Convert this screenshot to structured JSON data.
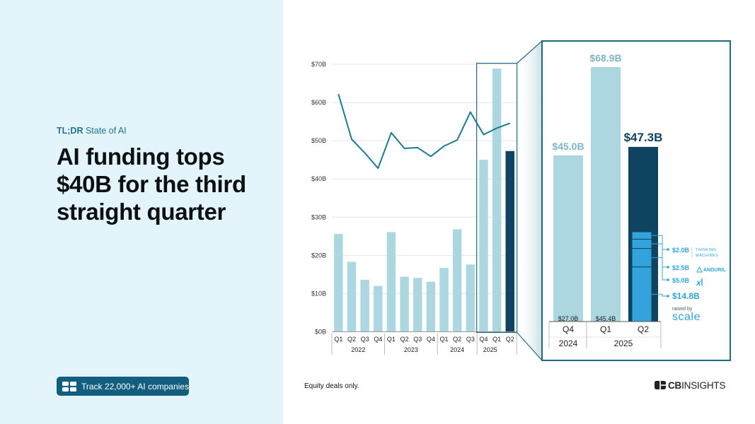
{
  "eyebrow": {
    "strong": "TL;DR",
    "rest": " State of AI"
  },
  "headline": "AI funding tops $40B for the third straight quarter",
  "cta": {
    "label": "Track 22,000+ AI companies"
  },
  "footnote": "Equity deals only.",
  "logo": {
    "text_bold": "CB",
    "text_light": "INSIGHTS"
  },
  "colors": {
    "bar_light": "#acd7e0",
    "bar_dark": "#0f4461",
    "line": "#197c92",
    "accent": "#33a3dc",
    "frame": "#1c6b83"
  },
  "chart_data": [
    {
      "type": "bar",
      "quarters": [
        "Q1",
        "Q2",
        "Q3",
        "Q4",
        "Q1",
        "Q2",
        "Q3",
        "Q4",
        "Q1",
        "Q2",
        "Q3",
        "Q4",
        "Q1",
        "Q2"
      ],
      "years": [
        {
          "label": "2022",
          "count": 4
        },
        {
          "label": "2023",
          "count": 4
        },
        {
          "label": "2024",
          "count": 3
        },
        {
          "label": "2025",
          "count": 2
        }
      ],
      "bar_values": [
        25.6,
        18.3,
        13.6,
        12.0,
        26.1,
        14.4,
        14.1,
        13.1,
        16.7,
        26.8,
        17.6,
        45.0,
        68.9,
        47.3
      ],
      "line_values": [
        62.2,
        50.4,
        46.8,
        42.8,
        52.1,
        48.0,
        48.2,
        45.9,
        48.6,
        50.2,
        57.5,
        51.6,
        53.3,
        54.6
      ],
      "highlight": {
        "from_index": 11,
        "to_index": 13
      },
      "ylim": [
        0,
        70
      ],
      "y_ticks": [
        {
          "value": 0,
          "label": "$0B"
        },
        {
          "value": 10,
          "label": "$10B"
        },
        {
          "value": 20,
          "label": "$20B"
        },
        {
          "value": 30,
          "label": "$30B"
        },
        {
          "value": 40,
          "label": "$40B"
        },
        {
          "value": 50,
          "label": "$50B"
        },
        {
          "value": 60,
          "label": "$60B"
        },
        {
          "value": 70,
          "label": "$70B"
        }
      ],
      "grid": true
    },
    {
      "type": "bar",
      "categories": [
        "Q4",
        "Q1",
        "Q2"
      ],
      "years": [
        {
          "label": "2024",
          "count": 1
        },
        {
          "label": "2025",
          "count": 2
        }
      ],
      "values": [
        45.0,
        68.9,
        47.3
      ],
      "value_labels": [
        "$45.0B",
        "$68.9B",
        "$47.3B"
      ],
      "base_labels": [
        "$27.0B",
        "$45.4B",
        ""
      ],
      "ylim": [
        0,
        70
      ],
      "breakdown": [
        {
          "label": "$14.8B",
          "value": 14.8,
          "company": "scale",
          "caption": "raised by"
        },
        {
          "label": "$5.0B",
          "value": 5.0,
          "company": "xAI"
        },
        {
          "label": "$2.5B",
          "value": 2.5,
          "company": "ANDURIL"
        },
        {
          "label": "$2.0B",
          "value": 2.0,
          "company": "THINKING MACHINES"
        }
      ]
    }
  ]
}
